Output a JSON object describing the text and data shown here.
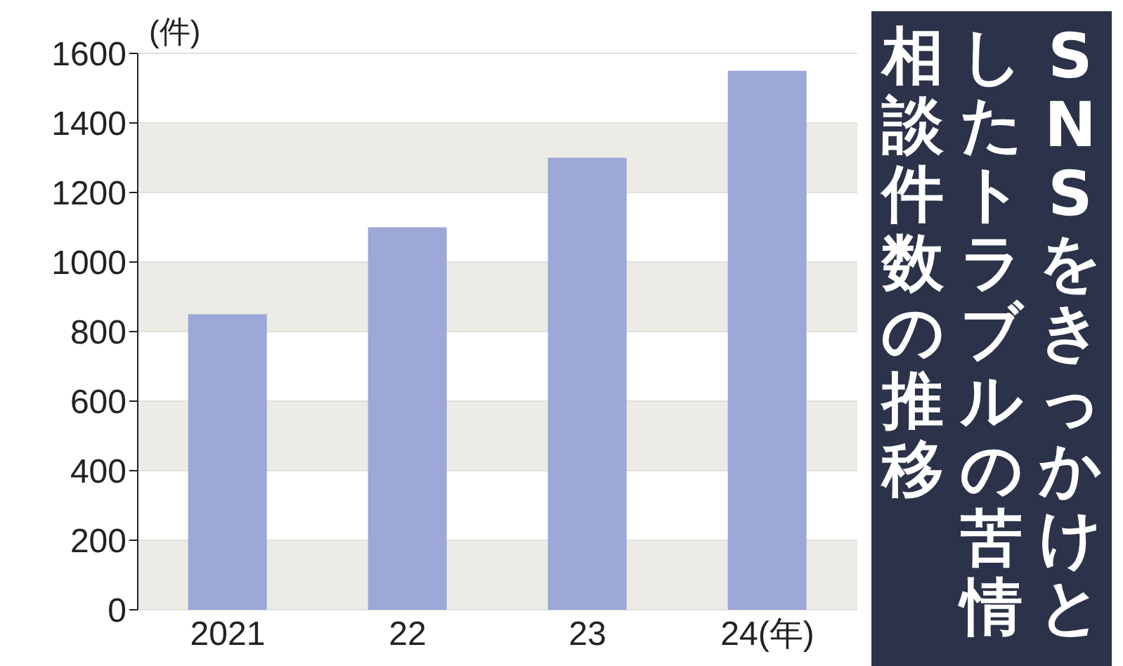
{
  "chart_data": {
    "type": "bar",
    "title": "SNSをきっかけとしたトラブルの苦情相談件数の推移",
    "ylabel": "(件)",
    "categories": [
      "2021",
      "22",
      "23",
      "24(年)"
    ],
    "values": [
      850,
      1100,
      1300,
      1550
    ],
    "color": "#9da8d8",
    "ylim": [
      0,
      1600
    ],
    "yticks": [
      0,
      200,
      400,
      600,
      800,
      1000,
      1200,
      1400,
      1600
    ],
    "grid": "y"
  }
}
